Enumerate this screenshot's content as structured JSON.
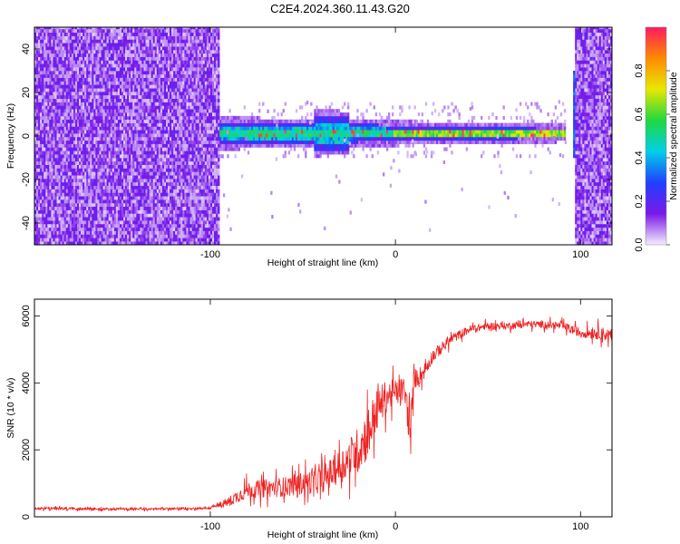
{
  "title": "C2E4.2024.360.11.43.G20",
  "chart_data": [
    {
      "type": "heatmap",
      "title": "C2E4.2024.360.11.43.G20",
      "xlabel": "Height of straight line (km)",
      "ylabel": "Frequency (Hz)",
      "xlim": [
        -195,
        117
      ],
      "ylim": [
        -50,
        50
      ],
      "xticks": [
        -100,
        0,
        100
      ],
      "xtick_labels": [
        "-100",
        "0",
        "100"
      ],
      "yticks": [
        -40,
        -20,
        0,
        20,
        40
      ],
      "ytick_labels": [
        "-40",
        "-20",
        "0",
        "20",
        "40"
      ],
      "colorbar": {
        "label": "Normalized spectral amplitude",
        "range": [
          0,
          1
        ],
        "ticks": [
          0,
          0.2,
          0.4,
          0.6,
          0.8
        ],
        "tick_labels": [
          "0.0",
          "0.2",
          "0.4",
          "0.6",
          "0.8"
        ],
        "colormap": [
          "#f4eefc",
          "#7a19e8",
          "#2040ff",
          "#00d0e8",
          "#20d840",
          "#e8e800",
          "#ff8a00",
          "#ff1a60"
        ]
      },
      "regions": [
        {
          "x_range": [
            -195,
            -95
          ],
          "frequency_range": [
            -50,
            50
          ],
          "description_level": 0.15
        },
        {
          "x_range": [
            -95,
            92
          ],
          "frequency_range": [
            -8,
            12
          ],
          "description_level": 0.45
        },
        {
          "x_range": [
            97,
            117
          ],
          "frequency_range": [
            -50,
            50
          ],
          "description_level": 0.15
        }
      ],
      "signal_line": {
        "frequency": 0,
        "x_range": [
          -95,
          97
        ]
      },
      "grid": false
    },
    {
      "type": "line",
      "xlabel": "Height of straight line (km)",
      "ylabel": "SNR (10 * v/v)",
      "xlim": [
        -195,
        117
      ],
      "ylim": [
        0,
        6500
      ],
      "xticks": [
        -100,
        0,
        100
      ],
      "xtick_labels": [
        "-100",
        "0",
        "100"
      ],
      "yticks": [
        0,
        2000,
        4000,
        6000
      ],
      "ytick_labels": [
        "0",
        "2000",
        "4000",
        "6000"
      ],
      "series_color": "#ee2020",
      "x": [
        -195,
        -180,
        -160,
        -140,
        -120,
        -100,
        -90,
        -80,
        -60,
        -40,
        -30,
        -20,
        -15,
        -10,
        -5,
        0,
        5,
        8,
        10,
        15,
        20,
        30,
        40,
        50,
        60,
        70,
        80,
        90,
        100,
        110,
        117
      ],
      "values": [
        250,
        250,
        230,
        230,
        240,
        260,
        450,
        800,
        900,
        1100,
        1500,
        2000,
        2500,
        3200,
        3600,
        3700,
        3800,
        2500,
        4100,
        4300,
        4800,
        5300,
        5600,
        5700,
        5700,
        5750,
        5750,
        5700,
        5500,
        5500,
        5400
      ],
      "noise_amplitude": [
        40,
        40,
        35,
        35,
        35,
        40,
        150,
        250,
        300,
        400,
        500,
        700,
        800,
        600,
        500,
        400,
        400,
        600,
        300,
        250,
        200,
        150,
        120,
        110,
        110,
        110,
        110,
        120,
        150,
        200,
        200
      ],
      "grid": false
    }
  ]
}
